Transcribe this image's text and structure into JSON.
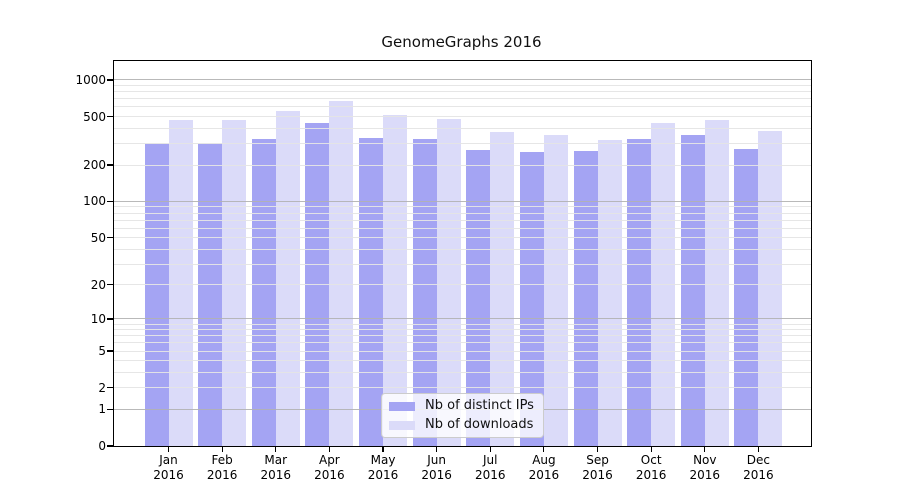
{
  "chart_data": {
    "type": "bar",
    "title": "GenomeGraphs 2016",
    "year": "2016",
    "categories": [
      "Jan",
      "Feb",
      "Mar",
      "Apr",
      "May",
      "Jun",
      "Jul",
      "Aug",
      "Sep",
      "Oct",
      "Nov",
      "Dec"
    ],
    "series": [
      {
        "name": "Nb of distinct IPs",
        "color": "#a4a4f3",
        "values": [
          300,
          300,
          330,
          440,
          335,
          330,
          265,
          258,
          260,
          325,
          355,
          270
        ]
      },
      {
        "name": "Nb of downloads",
        "color": "#dbdbf9",
        "values": [
          465,
          465,
          555,
          670,
          515,
          475,
          375,
          350,
          320,
          440,
          470,
          380
        ]
      }
    ],
    "y_scale": "log10(1+value)",
    "y_ticks": [
      0,
      1,
      2,
      5,
      10,
      20,
      50,
      100,
      200,
      500,
      1000
    ],
    "y_major_gridlines": [
      1,
      10,
      100,
      1000
    ],
    "y_minor_gridline_decades": [
      1,
      10,
      100
    ],
    "ylim_top_approx": 1430,
    "grid": true,
    "legend_position": "inside-bottom-center",
    "frame_color": "#000000",
    "background_color": "#ffffff"
  }
}
